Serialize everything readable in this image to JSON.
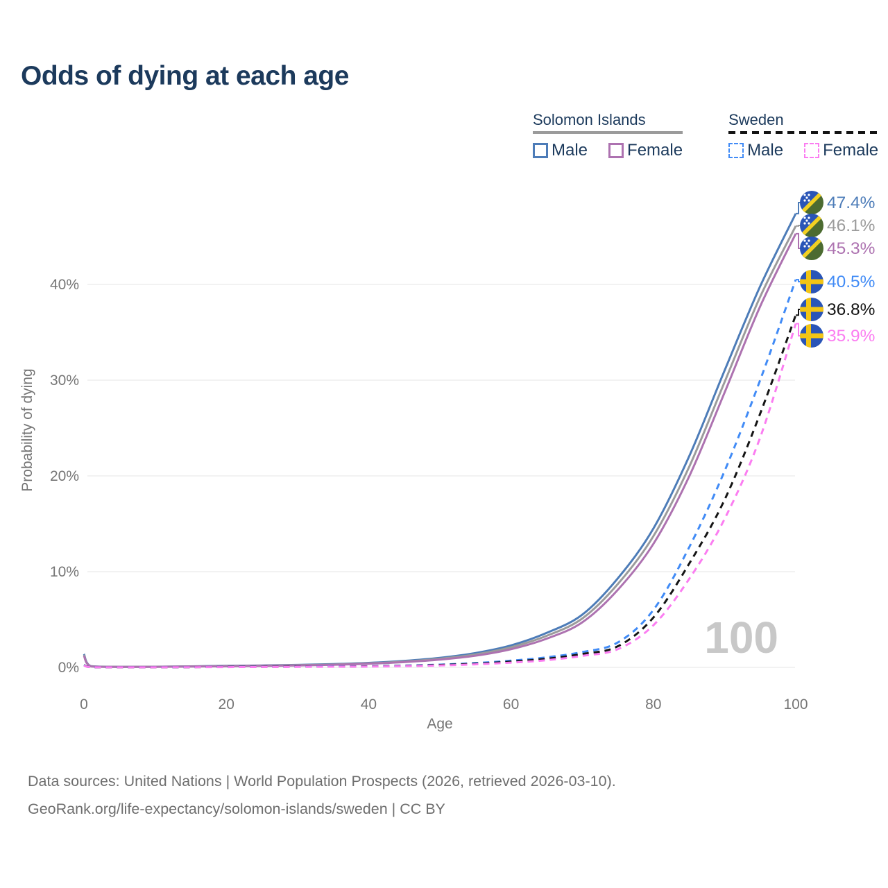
{
  "title": "Odds of dying at each age",
  "legend": {
    "groups": [
      {
        "country": "Solomon Islands",
        "line_style": "solid",
        "underline_color": "#9b9b9b",
        "items": [
          {
            "label": "Male",
            "color": "#4d7cb8"
          },
          {
            "label": "Female",
            "color": "#ad72b0"
          }
        ]
      },
      {
        "country": "Sweden",
        "line_style": "dashed",
        "underline_color": "#141414",
        "items": [
          {
            "label": "Male",
            "color": "#418bf6"
          },
          {
            "label": "Female",
            "color": "#fb7df1"
          }
        ]
      }
    ]
  },
  "chart_data": {
    "type": "line",
    "title": "Odds of dying at each age",
    "xlabel": "Age",
    "ylabel": "Probability of dying",
    "xlim": [
      0,
      100
    ],
    "ylim_percent": [
      0,
      48
    ],
    "x_ticks": [
      0,
      20,
      40,
      60,
      80,
      100
    ],
    "y_ticks_percent": [
      0,
      10,
      20,
      30,
      40
    ],
    "grid": true,
    "legend_position": "top-right",
    "age_watermark": "100",
    "ages": [
      0,
      1,
      5,
      10,
      15,
      20,
      25,
      30,
      35,
      40,
      45,
      50,
      55,
      60,
      65,
      70,
      75,
      80,
      85,
      90,
      95,
      100
    ],
    "series": [
      {
        "name": "Solomon Islands Male",
        "country": "Solomon Islands",
        "sex": "Male",
        "style": "solid",
        "color": "#4d7cb8",
        "flag": "solomon-islands",
        "end_label": "47.4%",
        "end_value_percent": 47.4,
        "values_percent": [
          1.4,
          0.12,
          0.06,
          0.07,
          0.11,
          0.16,
          0.2,
          0.26,
          0.34,
          0.47,
          0.68,
          1.0,
          1.5,
          2.3,
          3.6,
          5.5,
          9.3,
          14.5,
          22.0,
          31.0,
          39.8,
          47.4
        ]
      },
      {
        "name": "Solomon Islands Both sexes",
        "country": "Solomon Islands",
        "sex": "Both",
        "style": "solid",
        "color": "#9b9b9b",
        "flag": "solomon-islands",
        "end_label": "46.1%",
        "end_value_percent": 46.1,
        "values_percent": [
          1.3,
          0.11,
          0.055,
          0.065,
          0.1,
          0.14,
          0.18,
          0.23,
          0.3,
          0.42,
          0.61,
          0.9,
          1.35,
          2.1,
          3.3,
          5.1,
          8.7,
          13.7,
          20.9,
          29.8,
          38.7,
          46.1
        ]
      },
      {
        "name": "Solomon Islands Female",
        "country": "Solomon Islands",
        "sex": "Female",
        "style": "solid",
        "color": "#ad72b0",
        "flag": "solomon-islands",
        "end_label": "45.3%",
        "end_value_percent": 45.3,
        "values_percent": [
          1.2,
          0.1,
          0.05,
          0.06,
          0.09,
          0.13,
          0.16,
          0.2,
          0.27,
          0.38,
          0.55,
          0.81,
          1.22,
          1.9,
          3.0,
          4.7,
          8.1,
          12.9,
          19.9,
          28.7,
          37.7,
          45.3
        ]
      },
      {
        "name": "Sweden Male",
        "country": "Sweden",
        "sex": "Male",
        "style": "dashed",
        "color": "#418bf6",
        "flag": "sweden",
        "end_label": "40.5%",
        "end_value_percent": 40.5,
        "values_percent": [
          0.25,
          0.02,
          0.01,
          0.01,
          0.03,
          0.06,
          0.07,
          0.08,
          0.1,
          0.13,
          0.19,
          0.29,
          0.45,
          0.7,
          1.05,
          1.6,
          2.6,
          6.0,
          12.5,
          20.5,
          30.0,
          40.5
        ]
      },
      {
        "name": "Sweden Both sexes",
        "country": "Sweden",
        "sex": "Both",
        "style": "dashed",
        "color": "#141414",
        "flag": "sweden",
        "end_label": "36.8%",
        "end_value_percent": 36.8,
        "values_percent": [
          0.22,
          0.02,
          0.01,
          0.01,
          0.02,
          0.05,
          0.06,
          0.07,
          0.08,
          0.11,
          0.16,
          0.25,
          0.38,
          0.6,
          0.9,
          1.4,
          2.2,
          5.2,
          10.8,
          17.5,
          26.5,
          36.8
        ]
      },
      {
        "name": "Sweden Female",
        "country": "Sweden",
        "sex": "Female",
        "style": "dashed",
        "color": "#fb7df1",
        "flag": "sweden",
        "end_label": "35.9%",
        "end_value_percent": 35.9,
        "values_percent": [
          0.2,
          0.02,
          0.01,
          0.01,
          0.02,
          0.03,
          0.04,
          0.05,
          0.07,
          0.09,
          0.13,
          0.2,
          0.32,
          0.5,
          0.75,
          1.2,
          1.9,
          4.4,
          9.2,
          15.5,
          24.0,
          35.9
        ]
      }
    ],
    "flag_colors": {
      "solomon_blue": "#2a55b7",
      "solomon_green": "#4c6b31",
      "solomon_yellow": "#f2d022",
      "sweden_blue": "#2a55b7",
      "sweden_yellow": "#f3c514"
    }
  },
  "style": {
    "title_color": "#1c3a5c",
    "axis_text_color": "#757575",
    "grid_color": "#e9e9e9",
    "watermark_color": "#c8c8c8"
  },
  "footer": {
    "line1": "Data sources: United Nations | World Population Prospects (2026, retrieved 2026-03-10).",
    "line2": "GeoRank.org/life-expectancy/solomon-islands/sweden | CC BY"
  }
}
